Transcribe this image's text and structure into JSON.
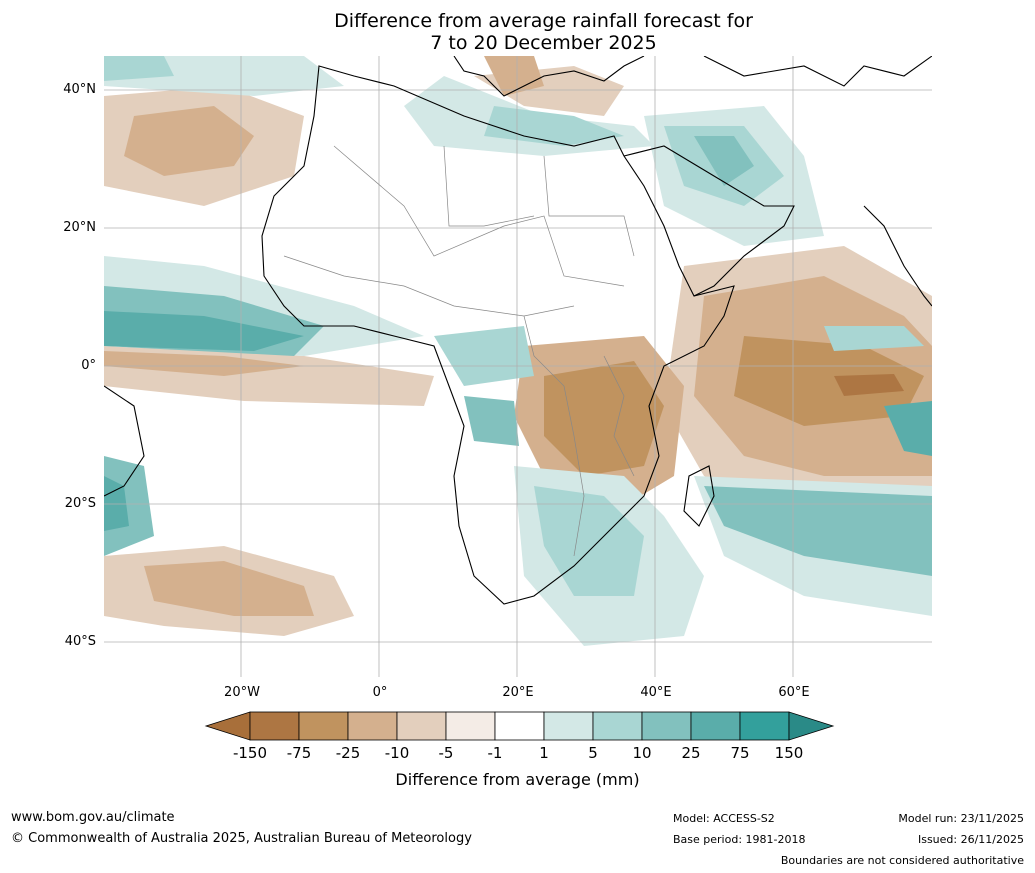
{
  "title": {
    "line1": "Difference from average rainfall forecast for",
    "line2": "7 to 20 December 2025"
  },
  "axes": {
    "lat_ticks": [
      "40°N",
      "20°N",
      "0°",
      "20°S",
      "40°S"
    ],
    "lon_ticks": [
      "20°W",
      "0°",
      "20°E",
      "40°E",
      "60°E"
    ]
  },
  "legend": {
    "ticks": [
      "-150",
      "-75",
      "-25",
      "-10",
      "-5",
      "-1",
      "1",
      "5",
      "10",
      "25",
      "75",
      "150"
    ],
    "colors": [
      "#a86f3a",
      "#ad7643",
      "#c0935f",
      "#d4b08e",
      "#e3cfbd",
      "#f4ece6",
      "#ffffff",
      "#d3e8e6",
      "#a9d6d3",
      "#82c1be",
      "#5aadaa",
      "#33a09c",
      "#2a8a87"
    ],
    "label": "Difference from average (mm)"
  },
  "footer": {
    "url": "www.bom.gov.au/climate",
    "copyright": "© Commonwealth of Australia 2025, Australian Bureau of Meteorology",
    "model": "Model: ACCESS-S2",
    "base_period": "Base period: 1981-2018",
    "model_run": "Model run: 23/11/2025",
    "issued": "Issued: 26/11/2025",
    "disclaimer": "Boundaries are not considered authoritative"
  }
}
